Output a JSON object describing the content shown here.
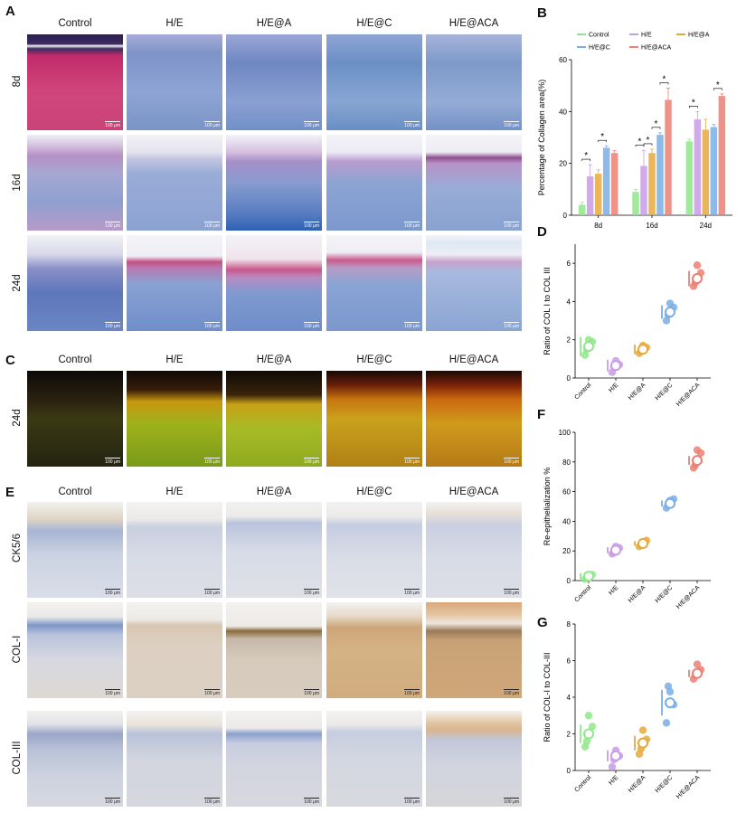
{
  "panels": {
    "A": {
      "letter": "A",
      "columns": [
        "Control",
        "H/E",
        "H/E@A",
        "H/E@C",
        "H/E@ACA"
      ],
      "rows": [
        "8d",
        "16d",
        "24d"
      ],
      "scale_bar": "100 μm"
    },
    "B": {
      "letter": "B"
    },
    "C": {
      "letter": "C",
      "columns": [
        "Control",
        "H/E",
        "H/E@A",
        "H/E@C",
        "H/E@ACA"
      ],
      "rows": [
        "24d"
      ],
      "scale_bar": "100 μm"
    },
    "D": {
      "letter": "D"
    },
    "E": {
      "letter": "E",
      "columns": [
        "Control",
        "H/E",
        "H/E@A",
        "H/E@C",
        "H/E@ACA"
      ],
      "rows": [
        "CK5/6",
        "COL-I",
        "COL-III"
      ],
      "scale_bar": "100 μm"
    },
    "F": {
      "letter": "F"
    },
    "G": {
      "letter": "G"
    }
  },
  "colors": {
    "Control": "#8fe88a",
    "H/E": "#c99be6",
    "H/E@A": "#e6a93c",
    "H/E@C": "#7aaee6",
    "H/E@ACA": "#ec8074"
  },
  "chart_data": [
    {
      "id": "B",
      "type": "bar",
      "categories": [
        "8d",
        "16d",
        "24d"
      ],
      "ylabel": "Percentage of Collagen area(%)",
      "ylim": [
        0,
        60
      ],
      "yticks": [
        0,
        20,
        40,
        60
      ],
      "legend": [
        "Control",
        "H/E",
        "H/E@A",
        "H/E@C",
        "H/E@ACA"
      ],
      "series": [
        {
          "name": "Control",
          "values": [
            4,
            9,
            28.5
          ],
          "errors": [
            1,
            1,
            0.8
          ]
        },
        {
          "name": "H/E",
          "values": [
            15,
            19,
            37
          ],
          "errors": [
            4.5,
            6,
            3
          ]
        },
        {
          "name": "H/E@A",
          "values": [
            16,
            24,
            33
          ],
          "errors": [
            1.5,
            1.5,
            4
          ]
        },
        {
          "name": "H/E@C",
          "values": [
            26,
            31,
            34
          ],
          "errors": [
            0.8,
            0.8,
            1
          ]
        },
        {
          "name": "H/E@ACA",
          "values": [
            24,
            44.5,
            46
          ],
          "errors": [
            1,
            4.5,
            0.8
          ]
        }
      ],
      "significance": "*"
    },
    {
      "id": "D",
      "type": "scatter",
      "categories": [
        "Control",
        "H/E",
        "H/E@A",
        "H/E@C",
        "H/E@ACA"
      ],
      "ylabel": "Ratio of COL I to COL III",
      "ylim": [
        0,
        7
      ],
      "yticks": [
        0,
        2,
        4,
        6
      ],
      "means": [
        1.65,
        0.65,
        1.5,
        3.45,
        5.2
      ],
      "sd": [
        0.5,
        0.3,
        0.25,
        0.35,
        0.4
      ],
      "points": [
        [
          1.2,
          1.9,
          2.0,
          1.5
        ],
        [
          0.3,
          0.7,
          0.9,
          0.6
        ],
        [
          1.3,
          1.6,
          1.7,
          1.4
        ],
        [
          3.0,
          3.7,
          3.9,
          3.3
        ],
        [
          4.8,
          5.5,
          5.9,
          5.0
        ]
      ]
    },
    {
      "id": "F",
      "type": "scatter",
      "categories": [
        "Control",
        "H/E",
        "H/E@A",
        "H/E@C",
        "H/E@ACA"
      ],
      "ylabel": "Re-epithelialization %",
      "ylim": [
        0,
        100
      ],
      "yticks": [
        0,
        20,
        40,
        60,
        80,
        100
      ],
      "means": [
        3,
        20.5,
        25,
        52,
        81
      ],
      "sd": [
        2,
        2,
        1.5,
        2,
        3
      ],
      "points": [
        [
          1,
          4,
          3,
          2
        ],
        [
          18,
          22,
          23,
          19
        ],
        [
          23,
          27,
          26,
          24
        ],
        [
          49,
          55,
          54,
          51
        ],
        [
          76,
          86,
          88,
          78
        ]
      ]
    },
    {
      "id": "G",
      "type": "scatter",
      "categories": [
        "Control",
        "H/E",
        "H/E@A",
        "H/E@C",
        "H/E@ACA"
      ],
      "ylabel": "Ratio of COL-I to COL-III",
      "ylim": [
        0,
        8
      ],
      "yticks": [
        0,
        2,
        4,
        6,
        8
      ],
      "means": [
        2.0,
        0.8,
        1.5,
        3.7,
        5.3
      ],
      "sd": [
        0.5,
        0.3,
        0.4,
        0.7,
        0.2
      ],
      "points": [
        [
          1.3,
          2.4,
          3.0,
          1.6
        ],
        [
          0.2,
          0.8,
          1.1,
          0.6
        ],
        [
          0.9,
          1.7,
          2.2,
          1.2
        ],
        [
          2.6,
          3.6,
          4.3,
          4.6
        ],
        [
          5.0,
          5.5,
          5.8,
          5.2
        ]
      ]
    }
  ]
}
